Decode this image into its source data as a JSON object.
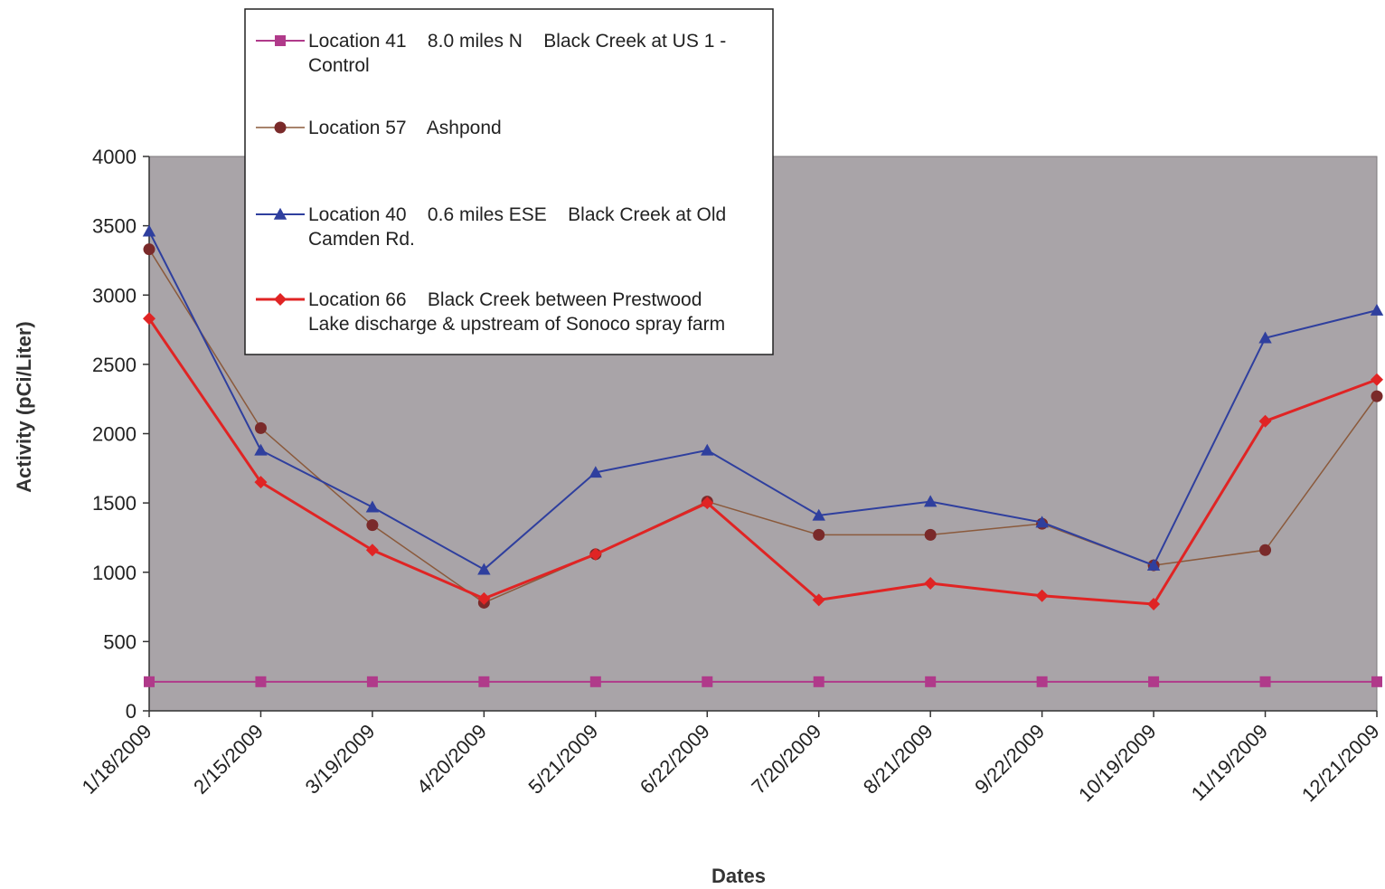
{
  "chart_data": {
    "type": "line",
    "title": "",
    "xlabel": "Dates",
    "ylabel": "Activity (pCi/Liter)",
    "ylim": [
      0,
      4000
    ],
    "yticks": [
      0,
      500,
      1000,
      1500,
      2000,
      2500,
      3000,
      3500,
      4000
    ],
    "grid": false,
    "plot_background": "#a9a4a8",
    "legend_position": "top-left, overlapping plot",
    "categories": [
      "1/18/2009",
      "2/15/2009",
      "3/19/2009",
      "4/20/2009",
      "5/21/2009",
      "6/22/2009",
      "7/20/2009",
      "8/21/2009",
      "9/22/2009",
      "10/19/2009",
      "11/19/2009",
      "12/21/2009"
    ],
    "series": [
      {
        "name": "Location 41    8.0 miles N    Black Creek at US 1 - Control",
        "legend_lines": [
          "Location 41    8.0 miles N    Black Creek at US 1 -",
          "Control"
        ],
        "color": "#b03a8a",
        "marker": "square",
        "line_width": 2,
        "values": [
          210,
          210,
          210,
          210,
          210,
          210,
          210,
          210,
          210,
          210,
          210,
          210
        ]
      },
      {
        "name": "Location 57    Ashpond",
        "legend_lines": [
          "Location 57    Ashpond"
        ],
        "color": "#8b5a3c",
        "marker_color": "#7a2a2a",
        "marker": "circle",
        "line_width": 1.5,
        "values": [
          3330,
          2040,
          1340,
          780,
          1130,
          1510,
          1270,
          1270,
          1350,
          1050,
          1160,
          2270
        ]
      },
      {
        "name": "Location 40    0.6 miles ESE    Black Creek at Old Camden Rd.",
        "legend_lines": [
          "Location 40    0.6 miles ESE    Black Creek at Old",
          "Camden Rd."
        ],
        "color": "#2f3f9e",
        "marker": "triangle",
        "line_width": 2,
        "values": [
          3460,
          1880,
          1470,
          1020,
          1720,
          1880,
          1410,
          1510,
          1360,
          1050,
          2690,
          2890
        ]
      },
      {
        "name": "Location 66    Black Creek between Prestwood Lake discharge & upstream of Sonoco spray farm",
        "legend_lines": [
          "Location 66    Black Creek between Prestwood",
          "Lake discharge & upstream of Sonoco spray farm"
        ],
        "color": "#e02424",
        "marker": "diamond",
        "line_width": 3,
        "values": [
          2830,
          1650,
          1160,
          810,
          1130,
          1500,
          800,
          920,
          830,
          770,
          2090,
          2390
        ]
      }
    ]
  }
}
